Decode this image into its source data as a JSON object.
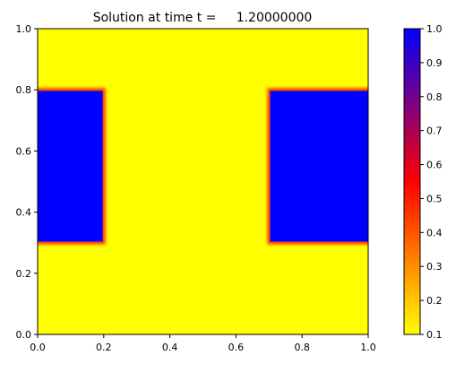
{
  "chart_data": {
    "type": "heatmap",
    "title": "Solution at time t =     1.20000000",
    "xlabel": "",
    "ylabel": "",
    "xlim": [
      0.0,
      1.0
    ],
    "ylim": [
      0.0,
      1.0
    ],
    "x_ticks": [
      "0.0",
      "0.2",
      "0.4",
      "0.6",
      "0.8",
      "1.0"
    ],
    "y_ticks": [
      "0.0",
      "0.2",
      "0.4",
      "0.6",
      "0.8",
      "1.0"
    ],
    "background_value": 0.1,
    "regions": [
      {
        "x": [
          0.0,
          0.2
        ],
        "y": [
          0.3,
          0.8
        ],
        "value": 1.0
      },
      {
        "x": [
          0.7,
          1.0
        ],
        "y": [
          0.3,
          0.8
        ],
        "value": 1.0
      }
    ],
    "colorbar": {
      "range": [
        0.1,
        1.0
      ],
      "ticks": [
        "0.1",
        "0.2",
        "0.3",
        "0.4",
        "0.5",
        "0.6",
        "0.7",
        "0.8",
        "0.9",
        "1.0"
      ],
      "colors": [
        "#ffff00",
        "#ff0000",
        "#0000ff"
      ]
    },
    "grid": false
  }
}
